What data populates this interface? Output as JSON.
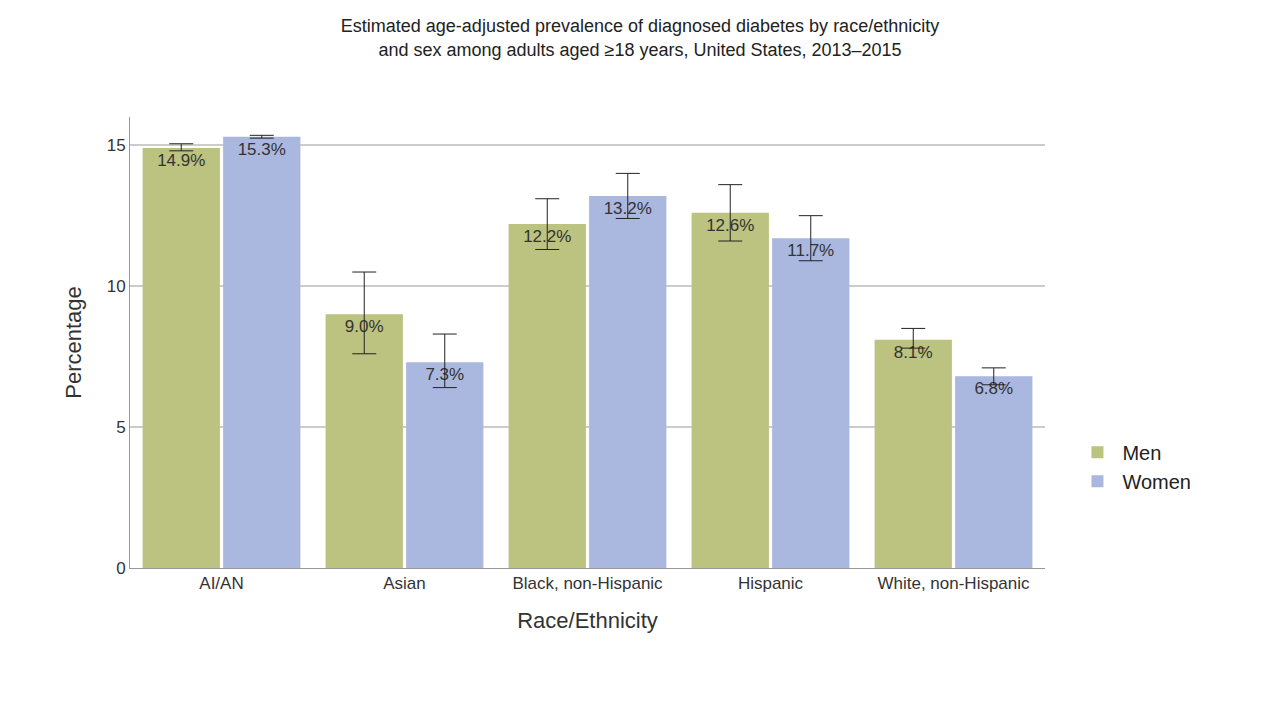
{
  "chart_data": {
    "type": "bar",
    "title": "Estimated age-adjusted prevalence of diagnosed diabetes by race/ethnicity\nand sex among adults aged ≥18 years, United States, 2013–2015",
    "x_label": "Race/Ethnicity",
    "y_label": "Percentage",
    "categories": [
      "AI/AN",
      "Asian",
      "Black, non-Hispanic",
      "Hispanic",
      "White, non-Hispanic"
    ],
    "series": [
      {
        "name": "Men",
        "color": "#bcc27f",
        "values": [
          14.9,
          9.0,
          12.2,
          12.6,
          8.1
        ],
        "value_labels": [
          "14.9%",
          "9.0%",
          "12.2%",
          "12.6%",
          "8.1%"
        ],
        "error_lower": [
          14.8,
          7.6,
          11.3,
          11.6,
          7.8
        ],
        "error_upper": [
          15.05,
          10.5,
          13.1,
          13.6,
          8.5
        ]
      },
      {
        "name": "Women",
        "color": "#aab7df",
        "values": [
          15.3,
          7.3,
          13.2,
          11.7,
          6.8
        ],
        "value_labels": [
          "15.3%",
          "7.3%",
          "13.2%",
          "11.7%",
          "6.8%"
        ],
        "error_lower": [
          15.25,
          6.4,
          12.4,
          10.9,
          6.5
        ],
        "error_upper": [
          15.35,
          8.3,
          14.0,
          12.5,
          7.1
        ]
      }
    ],
    "ylim": [
      0,
      16
    ],
    "yticks": [
      0,
      5,
      10,
      15
    ],
    "grid": true,
    "legend": "right",
    "data_labels": true
  }
}
